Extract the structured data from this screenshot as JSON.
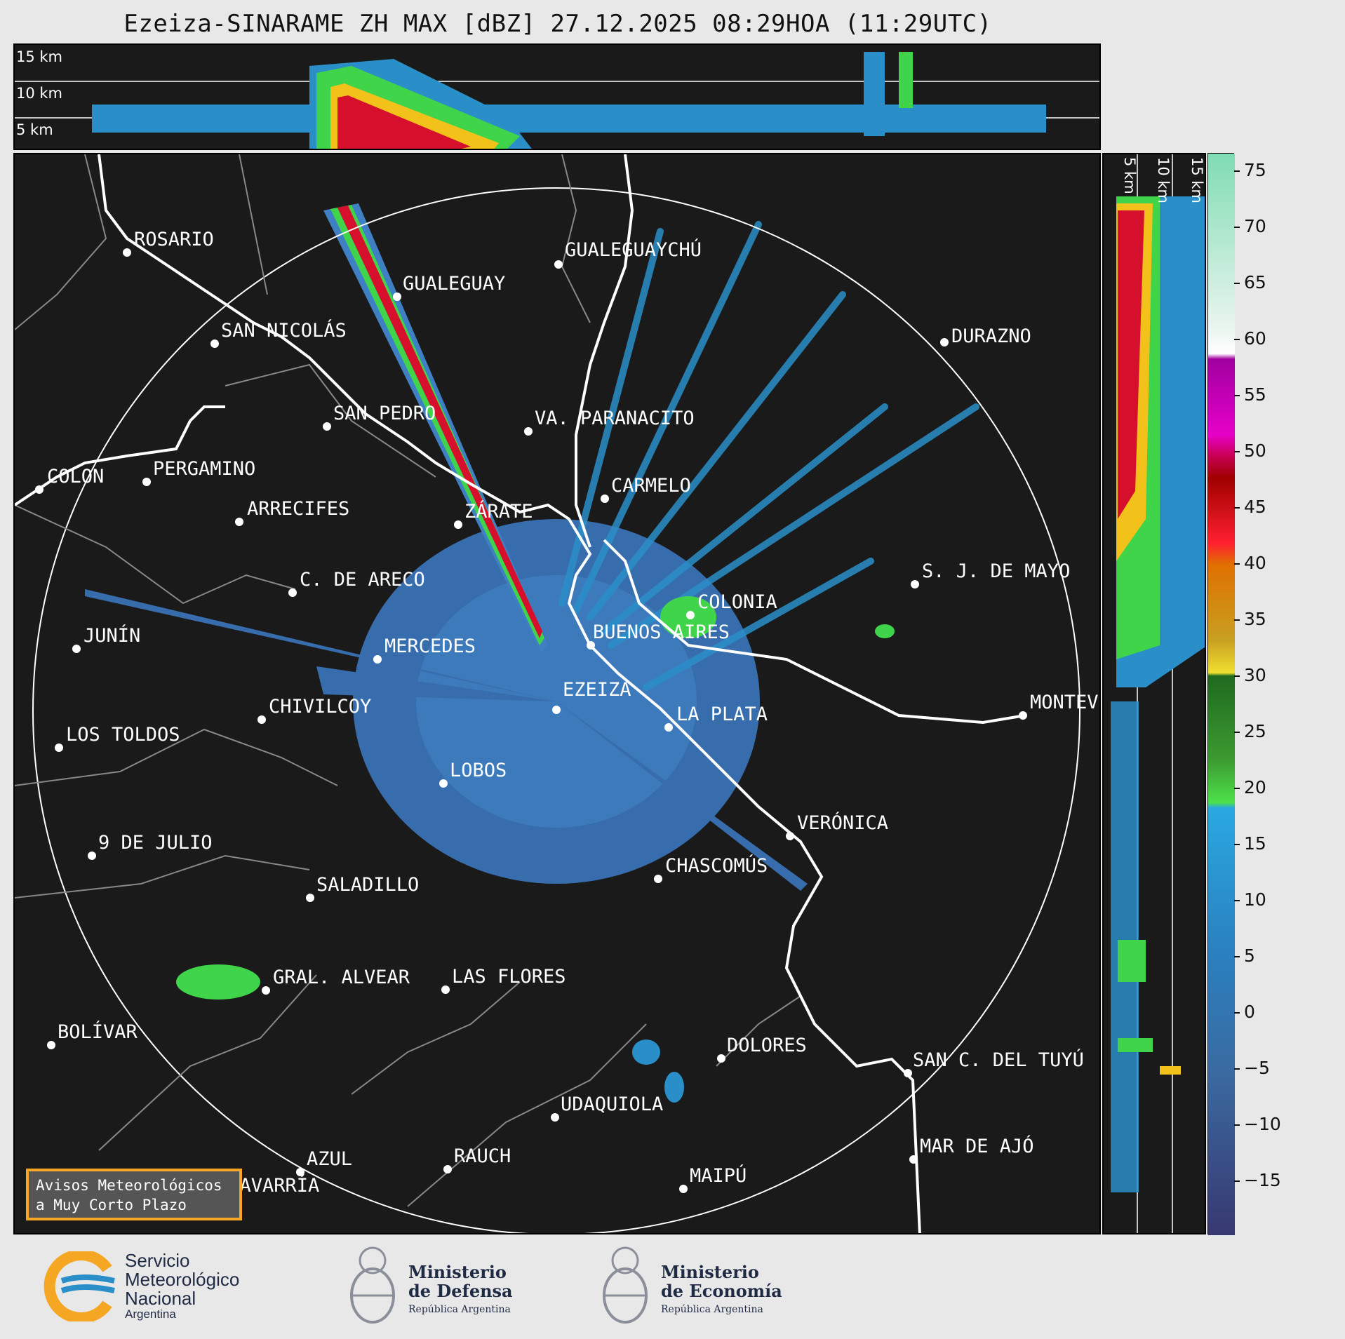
{
  "title": "Ezeiza-SINARAME ZH MAX [dBZ] 27.12.2025 08:29HOA (11:29UTC)",
  "height_labels": [
    "15 km",
    "10 km",
    "5 km"
  ],
  "colorbar": {
    "ticks": [
      "75",
      "70",
      "65",
      "60",
      "55",
      "50",
      "45",
      "40",
      "35",
      "30",
      "25",
      "20",
      "15",
      "10",
      "5",
      "0",
      "−5",
      "−10",
      "−15"
    ]
  },
  "cities": [
    {
      "name": "ROSARIO"
    },
    {
      "name": "GUALEGUAYCHÚ"
    },
    {
      "name": "GUALEGUAY"
    },
    {
      "name": "SAN NICOLÁS"
    },
    {
      "name": "DURAZNO"
    },
    {
      "name": "SAN PEDRO"
    },
    {
      "name": "VA. PARANACITO"
    },
    {
      "name": "COLON"
    },
    {
      "name": "PERGAMINO"
    },
    {
      "name": "CARMELO"
    },
    {
      "name": "ARRECIFES"
    },
    {
      "name": "ZÁRATE"
    },
    {
      "name": "S. J. DE MAYO"
    },
    {
      "name": "C. DE ARECO"
    },
    {
      "name": "COLONIA"
    },
    {
      "name": "JUNÍN"
    },
    {
      "name": "MERCEDES"
    },
    {
      "name": "BUENOS AIRES"
    },
    {
      "name": "EZEIZA"
    },
    {
      "name": "MONTEV"
    },
    {
      "name": "CHIVILCOY"
    },
    {
      "name": "LA PLATA"
    },
    {
      "name": "LOS TOLDOS"
    },
    {
      "name": "LOBOS"
    },
    {
      "name": "VERÓNICA"
    },
    {
      "name": "9 DE JULIO"
    },
    {
      "name": "CHASCOMÚS"
    },
    {
      "name": "SALADILLO"
    },
    {
      "name": "GRAL. ALVEAR"
    },
    {
      "name": "LAS FLORES"
    },
    {
      "name": "BOLÍVAR"
    },
    {
      "name": "DOLORES"
    },
    {
      "name": "SAN C. DEL TUYÚ"
    },
    {
      "name": "UDAQUIOLA"
    },
    {
      "name": "MAR DE AJÓ"
    },
    {
      "name": "AZUL"
    },
    {
      "name": "RAUCH"
    },
    {
      "name": "OLAVARRÍA"
    },
    {
      "name": "MAIPÚ"
    }
  ],
  "notice": {
    "line1": "Avisos Meteorológicos",
    "line2": "a Muy Corto Plazo"
  },
  "logos": {
    "smn": {
      "line1": "Servicio",
      "line2": "Meteorológico",
      "line3": "Nacional",
      "line4": "Argentina"
    },
    "defensa": {
      "line1": "Ministerio",
      "line2": "de Defensa",
      "line3": "República Argentina"
    },
    "economia": {
      "line1": "Ministerio",
      "line2": "de Economía",
      "line3": "República Argentina"
    }
  },
  "colors": {
    "background": "#1a1a1a",
    "coast": "#ffffff",
    "border": "#888888",
    "echo_low": "#3a80c0",
    "notice_border": "#f5a623"
  }
}
